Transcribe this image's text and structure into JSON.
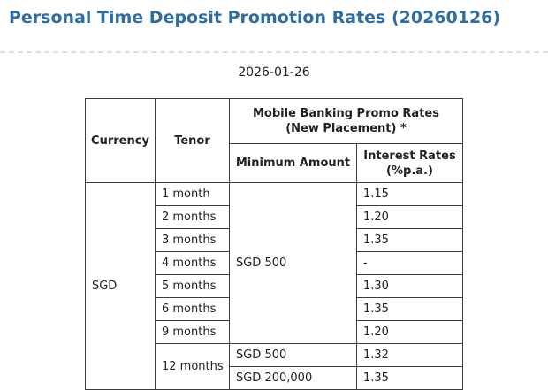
{
  "page": {
    "title": "Personal Time Deposit Promotion Rates (20260126)",
    "date": "2026-01-26"
  },
  "colors": {
    "title_blue": "#2E6DA4",
    "body_text": "#222222",
    "table_border": "#3C3C3C",
    "divider_gray": "#DDDDDD",
    "background": "#FFFFFF"
  },
  "table": {
    "header": {
      "currency": "Currency",
      "tenor": "Tenor",
      "group_lines": [
        "Mobile Banking Promo Rates",
        "(New Placement) *"
      ],
      "minimum_amount": "Minimum Amount",
      "interest_lines": [
        "Interest Rates",
        "(%p.a.)"
      ]
    },
    "currency": "SGD",
    "shared_minimum_amount": "SGD 500",
    "rows": [
      {
        "tenor": "1 month",
        "rate": "1.15"
      },
      {
        "tenor": "2 months",
        "rate": "1.20"
      },
      {
        "tenor": "3 months",
        "rate": "1.35"
      },
      {
        "tenor": "4 months",
        "rate": "-"
      },
      {
        "tenor": "5 months",
        "rate": "1.30"
      },
      {
        "tenor": "6 months",
        "rate": "1.35"
      },
      {
        "tenor": "9 months",
        "rate": "1.20"
      }
    ],
    "twelve_months": {
      "tenor": "12 months",
      "options": [
        {
          "minimum_amount": "SGD 500",
          "rate": "1.32"
        },
        {
          "minimum_amount": "SGD 200,000",
          "rate": "1.35"
        }
      ]
    }
  }
}
